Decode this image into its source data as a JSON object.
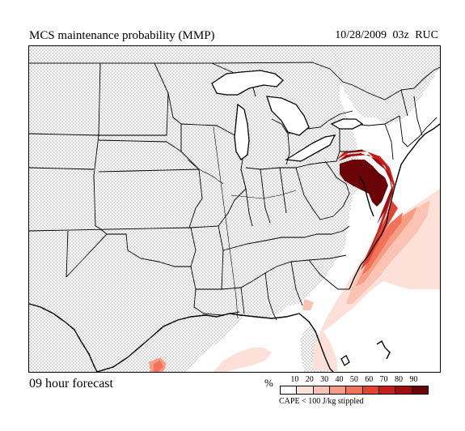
{
  "header": {
    "title": "MCS maintenance probability (MMP)",
    "valid": "10/28/2009  03z  RUC"
  },
  "footer": {
    "forecast": "09 hour forecast",
    "percent_symbol": "%",
    "stipple_note": "CAPE < 100 J/kg stippled"
  },
  "legend": {
    "ticks": [
      "10",
      "20",
      "30",
      "40",
      "50",
      "60",
      "70",
      "80",
      "90"
    ],
    "colors": [
      "#ffffff",
      "#fde0d8",
      "#fbc3b3",
      "#f79d86",
      "#f1735c",
      "#e2442f",
      "#c81e1b",
      "#a00e12",
      "#6b0408"
    ]
  }
}
